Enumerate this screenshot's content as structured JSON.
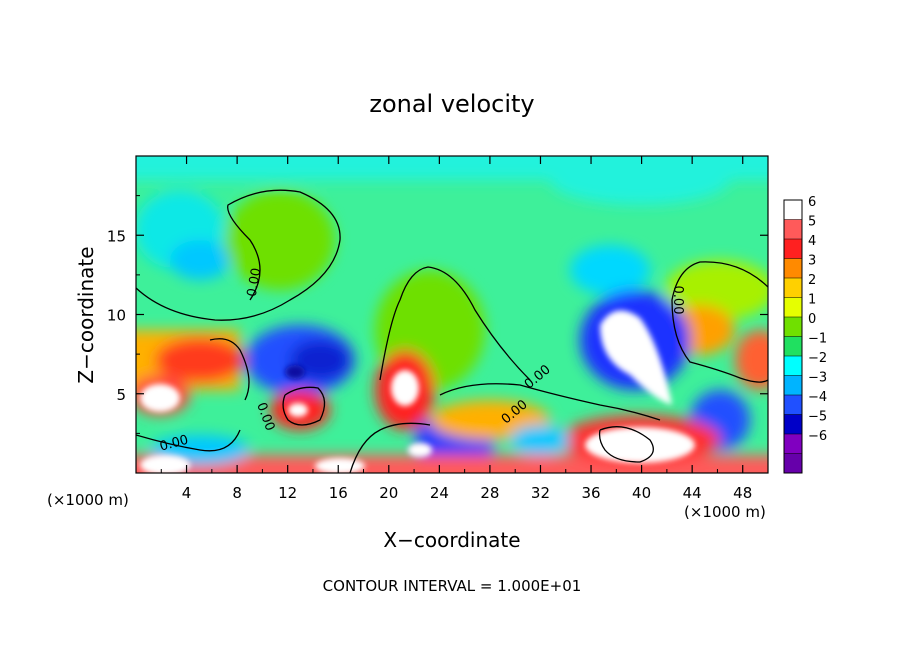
{
  "chart_data": {
    "type": "heatmap",
    "title": "zonal velocity",
    "xlabel": "X−coordinate",
    "ylabel": "Z−coordinate",
    "x_unit_left": "(×1000 m)",
    "x_unit_right": "(×1000 m)",
    "xlim": [
      0,
      50
    ],
    "ylim": [
      0,
      20
    ],
    "x_ticks": [
      4,
      8,
      12,
      16,
      20,
      24,
      28,
      32,
      36,
      40,
      44,
      48
    ],
    "y_ticks": [
      5,
      10,
      15
    ],
    "footer": "CONTOUR INTERVAL = 1.000E+01",
    "contour_label": "0.00",
    "colorbar": {
      "labels": [
        "6",
        "5",
        "4",
        "3",
        "2",
        "1",
        "0",
        "−1",
        "−2",
        "−3",
        "−4",
        "−5",
        "−6"
      ],
      "colors": [
        "#ffffff",
        "#ff5a5a",
        "#ff2020",
        "#ff8a00",
        "#ffd000",
        "#e6ff00",
        "#70e000",
        "#20e060",
        "#00ffff",
        "#00b4ff",
        "#2050ff",
        "#0000c8",
        "#8000c0",
        "#6600aa"
      ]
    }
  }
}
